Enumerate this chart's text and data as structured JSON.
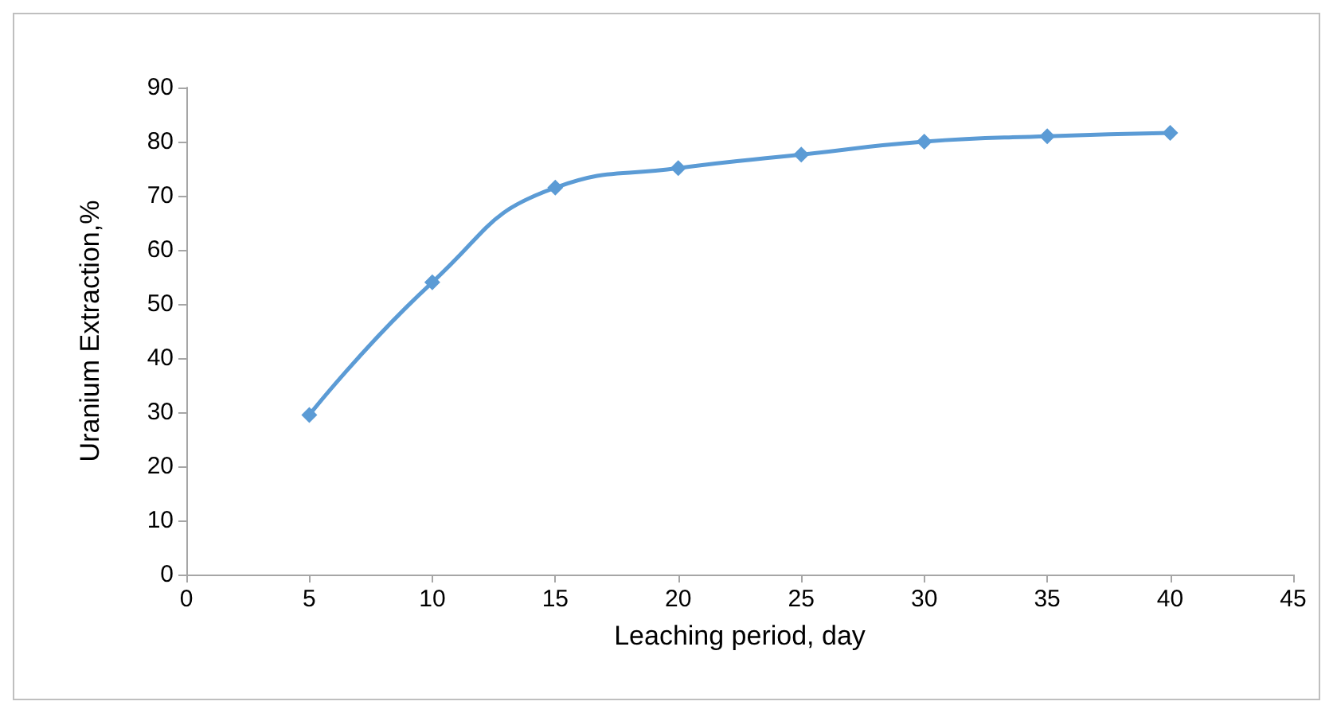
{
  "chart_data": {
    "type": "line",
    "xlabel": "Leaching period, day",
    "ylabel": "Uranium Extraction,%",
    "x": [
      5,
      10,
      15,
      20,
      25,
      30,
      35,
      40
    ],
    "series": [
      {
        "color": "#5b9bd5",
        "values": [
          29.5,
          54,
          71.5,
          75.1,
          77.6,
          80,
          81,
          81.6
        ]
      }
    ],
    "xlim": [
      0,
      45
    ],
    "xticks": [
      0,
      5,
      10,
      15,
      20,
      25,
      30,
      35,
      40,
      45
    ],
    "ylim": [
      0,
      90
    ],
    "yticks": [
      0,
      10,
      20,
      30,
      40,
      50,
      60,
      70,
      80,
      90
    ],
    "grid": false,
    "marker": "diamond",
    "line_style": "solid"
  }
}
